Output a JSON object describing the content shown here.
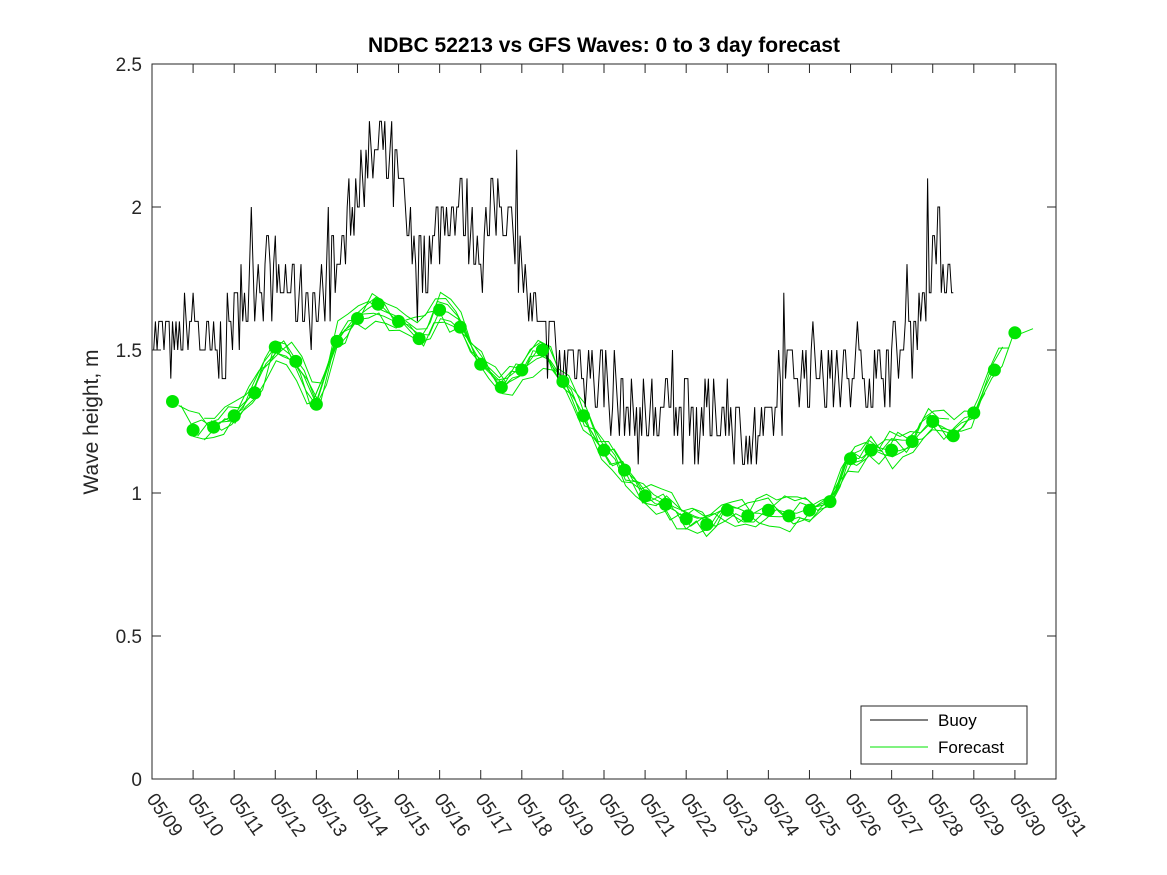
{
  "chart_data": {
    "type": "line",
    "title": "NDBC 52213 vs GFS Waves: 0 to 3 day forecast",
    "xlabel": "",
    "ylabel": "Wave height, m",
    "xlim": [
      "05/09",
      "05/31"
    ],
    "ylim": [
      0,
      2.5
    ],
    "x_ticks": [
      "05/09",
      "05/10",
      "05/11",
      "05/12",
      "05/13",
      "05/14",
      "05/15",
      "05/16",
      "05/17",
      "05/18",
      "05/19",
      "05/20",
      "05/21",
      "05/22",
      "05/23",
      "05/24",
      "05/25",
      "05/26",
      "05/27",
      "05/28",
      "05/29",
      "05/30",
      "05/31"
    ],
    "y_ticks": [
      "0",
      "0.5",
      "1",
      "1.5",
      "2",
      "2.5"
    ],
    "grid": false,
    "legend": {
      "position": "bottom-right",
      "entries": [
        "Buoy",
        "Forecast"
      ]
    },
    "colors": {
      "buoy": "#000000",
      "forecast": "#00e600",
      "axes": "#262626"
    },
    "series": [
      {
        "name": "Buoy",
        "x_unit": "days since 05/09 00:00",
        "points": [
          [
            0.0,
            1.6
          ],
          [
            0.5,
            1.5
          ],
          [
            1.0,
            1.6
          ],
          [
            1.5,
            1.45
          ],
          [
            2.0,
            1.6
          ],
          [
            2.5,
            1.75
          ],
          [
            3.0,
            1.75
          ],
          [
            3.5,
            1.7
          ],
          [
            4.0,
            1.65
          ],
          [
            4.5,
            1.8
          ],
          [
            5.0,
            2.05
          ],
          [
            5.5,
            2.2
          ],
          [
            6.0,
            2.1
          ],
          [
            6.5,
            1.75
          ],
          [
            7.0,
            1.95
          ],
          [
            7.5,
            2.0
          ],
          [
            8.0,
            1.85
          ],
          [
            8.5,
            2.05
          ],
          [
            9.0,
            1.75
          ],
          [
            9.5,
            1.5
          ],
          [
            10.0,
            1.45
          ],
          [
            10.5,
            1.45
          ],
          [
            11.0,
            1.4
          ],
          [
            11.5,
            1.3
          ],
          [
            12.0,
            1.25
          ],
          [
            12.5,
            1.3
          ],
          [
            13.0,
            1.25
          ],
          [
            13.5,
            1.25
          ],
          [
            14.0,
            1.3
          ],
          [
            14.5,
            1.15
          ],
          [
            15.0,
            1.2
          ],
          [
            15.5,
            1.4
          ],
          [
            16.0,
            1.45
          ],
          [
            16.5,
            1.4
          ],
          [
            17.0,
            1.4
          ],
          [
            17.5,
            1.4
          ],
          [
            18.0,
            1.45
          ],
          [
            18.5,
            1.55
          ],
          [
            19.0,
            1.85
          ],
          [
            19.5,
            1.8
          ]
        ]
      },
      {
        "name": "Forecast",
        "x_unit": "days since 05/09 00:00",
        "points": [
          [
            0.5,
            1.32
          ],
          [
            1.0,
            1.22
          ],
          [
            1.5,
            1.23
          ],
          [
            2.0,
            1.27
          ],
          [
            2.5,
            1.35
          ],
          [
            3.0,
            1.51
          ],
          [
            3.5,
            1.46
          ],
          [
            4.0,
            1.31
          ],
          [
            4.5,
            1.53
          ],
          [
            5.0,
            1.61
          ],
          [
            5.5,
            1.66
          ],
          [
            6.0,
            1.6
          ],
          [
            6.5,
            1.54
          ],
          [
            7.0,
            1.64
          ],
          [
            7.5,
            1.58
          ],
          [
            8.0,
            1.45
          ],
          [
            8.5,
            1.37
          ],
          [
            9.0,
            1.43
          ],
          [
            9.5,
            1.5
          ],
          [
            10.0,
            1.39
          ],
          [
            10.5,
            1.27
          ],
          [
            11.0,
            1.15
          ],
          [
            11.5,
            1.08
          ],
          [
            12.0,
            0.99
          ],
          [
            12.5,
            0.96
          ],
          [
            13.0,
            0.91
          ],
          [
            13.5,
            0.89
          ],
          [
            14.0,
            0.94
          ],
          [
            14.5,
            0.92
          ],
          [
            15.0,
            0.94
          ],
          [
            15.5,
            0.92
          ],
          [
            16.0,
            0.94
          ],
          [
            16.5,
            0.97
          ],
          [
            17.0,
            1.12
          ],
          [
            17.5,
            1.15
          ],
          [
            18.0,
            1.15
          ],
          [
            18.5,
            1.18
          ],
          [
            19.0,
            1.25
          ],
          [
            19.5,
            1.2
          ],
          [
            20.0,
            1.28
          ],
          [
            20.5,
            1.43
          ],
          [
            21.0,
            1.56
          ]
        ]
      }
    ]
  }
}
